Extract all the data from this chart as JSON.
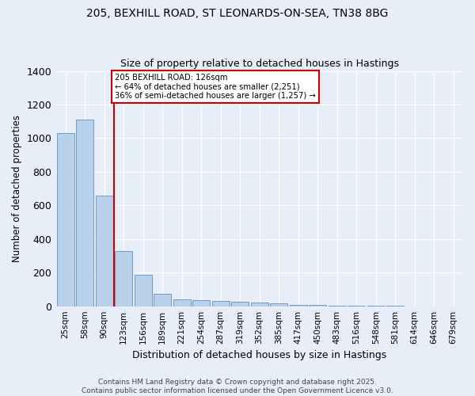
{
  "title1": "205, BEXHILL ROAD, ST LEONARDS-ON-SEA, TN38 8BG",
  "title2": "Size of property relative to detached houses in Hastings",
  "xlabel": "Distribution of detached houses by size in Hastings",
  "ylabel": "Number of detached properties",
  "footer1": "Contains HM Land Registry data © Crown copyright and database right 2025.",
  "footer2": "Contains public sector information licensed under the Open Government Licence v3.0.",
  "categories": [
    "25sqm",
    "58sqm",
    "90sqm",
    "123sqm",
    "156sqm",
    "189sqm",
    "221sqm",
    "254sqm",
    "287sqm",
    "319sqm",
    "352sqm",
    "385sqm",
    "417sqm",
    "450sqm",
    "483sqm",
    "516sqm",
    "548sqm",
    "581sqm",
    "614sqm",
    "646sqm",
    "679sqm"
  ],
  "values": [
    1030,
    1110,
    660,
    330,
    185,
    75,
    40,
    35,
    30,
    25,
    20,
    15,
    10,
    8,
    5,
    3,
    2,
    1,
    0,
    0,
    0
  ],
  "bar_color": "#b8d0ea",
  "bar_edge_color": "#6090b8",
  "bg_color": "#e8eef8",
  "grid_color": "#ffffff",
  "vline_color": "#cc0000",
  "annotation_text": "205 BEXHILL ROAD: 126sqm\n← 64% of detached houses are smaller (2,251)\n36% of semi-detached houses are larger (1,257) →",
  "annotation_box_color": "#cc0000",
  "ylim": [
    0,
    1400
  ],
  "yticks": [
    0,
    200,
    400,
    600,
    800,
    1000,
    1200,
    1400
  ]
}
